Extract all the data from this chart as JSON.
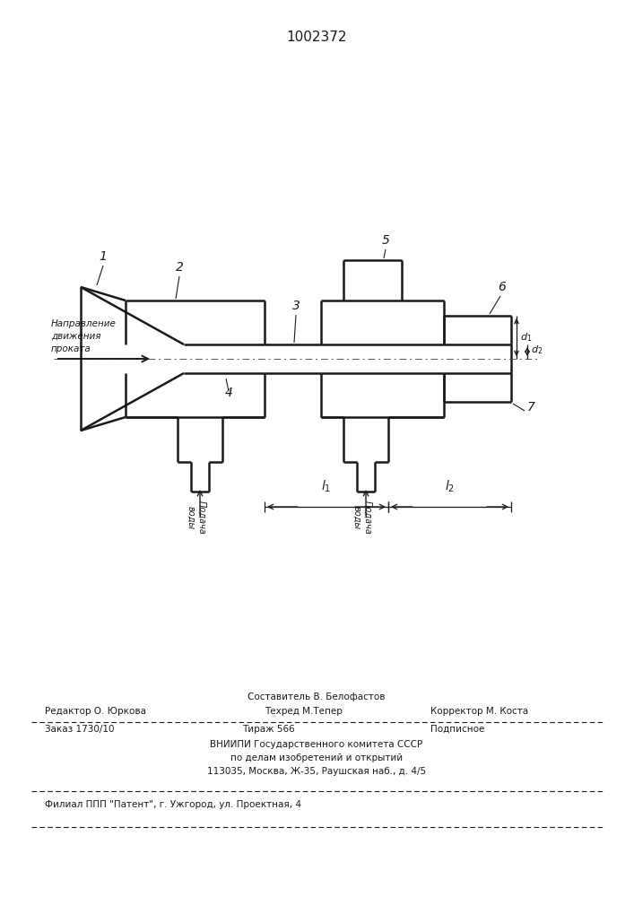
{
  "title": "1002372",
  "bg_color": "#ffffff",
  "line_color": "#1a1a1a",
  "lw": 1.8,
  "footer": {
    "line1_center": "Составитель В. Белофастов",
    "line2_left": "Редактор О. Юркова",
    "line2_center": "Техред М.Тепер",
    "line2_right": "Корректор М. Коста",
    "line3_left": "Заказ 1730/10",
    "line3_center": "Тираж 566",
    "line3_right": "Подписное",
    "line4": "ВНИИПИ Государственного комитета СССР",
    "line5": "по делам изобретений и открытий",
    "line6": "113035, Москва, Ж-35, Раушская наб., д. 4/5",
    "line7": "Филиал ППП \"Патент\", г. Ужгород, ул. Проектная, 4"
  }
}
